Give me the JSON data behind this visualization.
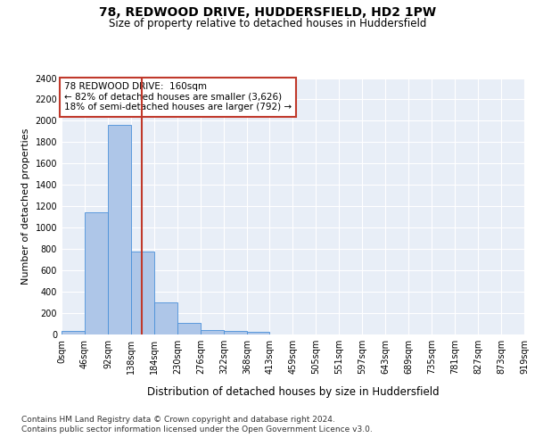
{
  "title1": "78, REDWOOD DRIVE, HUDDERSFIELD, HD2 1PW",
  "title2": "Size of property relative to detached houses in Huddersfield",
  "xlabel": "Distribution of detached houses by size in Huddersfield",
  "ylabel": "Number of detached properties",
  "bin_edges": [
    0,
    46,
    92,
    138,
    184,
    230,
    276,
    322,
    368,
    413,
    459,
    505,
    551,
    597,
    643,
    689,
    735,
    781,
    827,
    873,
    919
  ],
  "bar_heights": [
    35,
    1140,
    1960,
    780,
    300,
    105,
    45,
    35,
    22,
    0,
    0,
    0,
    0,
    0,
    0,
    0,
    0,
    0,
    0,
    0
  ],
  "bar_color": "#aec6e8",
  "bar_edge_color": "#4a90d9",
  "property_size": 160,
  "red_line_color": "#c0392b",
  "annotation_line1": "78 REDWOOD DRIVE:  160sqm",
  "annotation_line2": "← 82% of detached houses are smaller (3,626)",
  "annotation_line3": "18% of semi-detached houses are larger (792) →",
  "annotation_box_color": "#ffffff",
  "annotation_box_edge": "#c0392b",
  "ylim": [
    0,
    2400
  ],
  "yticks": [
    0,
    200,
    400,
    600,
    800,
    1000,
    1200,
    1400,
    1600,
    1800,
    2000,
    2200,
    2400
  ],
  "background_color": "#e8eef7",
  "footer_line1": "Contains HM Land Registry data © Crown copyright and database right 2024.",
  "footer_line2": "Contains public sector information licensed under the Open Government Licence v3.0.",
  "title1_fontsize": 10,
  "title2_fontsize": 8.5,
  "xlabel_fontsize": 8.5,
  "ylabel_fontsize": 8,
  "tick_fontsize": 7,
  "footer_fontsize": 6.5
}
